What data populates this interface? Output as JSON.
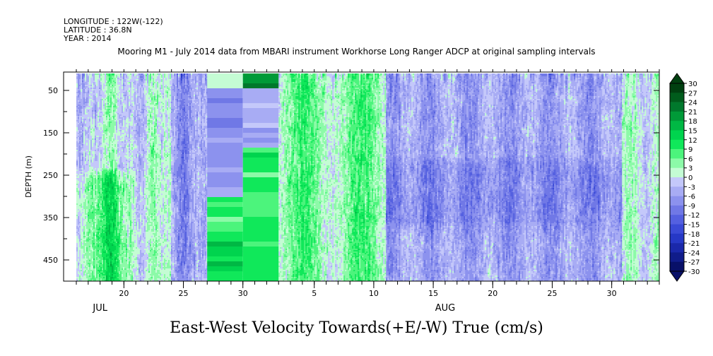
{
  "header": {
    "longitude": "LONGITUDE : 122W(-122)",
    "latitude": "LATITUDE : 36.8N",
    "year": "YEAR : 2014"
  },
  "chart_data": {
    "type": "heatmap",
    "title": "Mooring M1 - July 2014 data from MBARI instrument Workhorse Long Ranger ADCP at original sampling intervals",
    "xlabel": "East-West Velocity Towards(+E/-W) True (cm/s)",
    "ylabel": "DEPTH (m)",
    "x_start": "2014-07-16",
    "x_end": "2014-09-03",
    "x_ticks": [
      {
        "date": "2014-07-20",
        "label": "20"
      },
      {
        "date": "2014-07-25",
        "label": "25"
      },
      {
        "date": "2014-07-30",
        "label": "30"
      },
      {
        "date": "2014-08-05",
        "label": "5"
      },
      {
        "date": "2014-08-10",
        "label": "10"
      },
      {
        "date": "2014-08-15",
        "label": "15"
      },
      {
        "date": "2014-08-20",
        "label": "20"
      },
      {
        "date": "2014-08-25",
        "label": "25"
      },
      {
        "date": "2014-08-30",
        "label": "30"
      }
    ],
    "month_labels": [
      {
        "date": "2014-07-18",
        "label": "JUL"
      },
      {
        "date": "2014-08-16",
        "label": "AUG"
      }
    ],
    "y_range": [
      10,
      500
    ],
    "y_reversed": true,
    "y_ticks": [
      50,
      150,
      250,
      350,
      450
    ],
    "colorbar": {
      "min": -30,
      "max": 30,
      "step": 3,
      "extend": "both",
      "labels": [
        30,
        27,
        24,
        21,
        18,
        15,
        12,
        9,
        6,
        3,
        0,
        -3,
        -6,
        -9,
        -12,
        -15,
        -18,
        -21,
        -24,
        -27,
        -30
      ]
    },
    "velocity_pattern": [
      {
        "from": "2014-07-16",
        "to": "2014-07-27",
        "character": "mixed, strong positive below 250 m"
      },
      {
        "from": "2014-07-27",
        "to": "2014-07-30",
        "character": "coarse blocks: negative upper, positive lower"
      },
      {
        "from": "2014-07-30",
        "to": "2014-08-02",
        "character": "coarse blocks: strongly positive"
      },
      {
        "from": "2014-08-02",
        "to": "2014-08-10",
        "character": "mostly positive"
      },
      {
        "from": "2014-08-10",
        "to": "2014-08-30",
        "character": "mostly negative"
      },
      {
        "from": "2014-08-30",
        "to": "2014-09-03",
        "character": "mixed"
      }
    ]
  }
}
